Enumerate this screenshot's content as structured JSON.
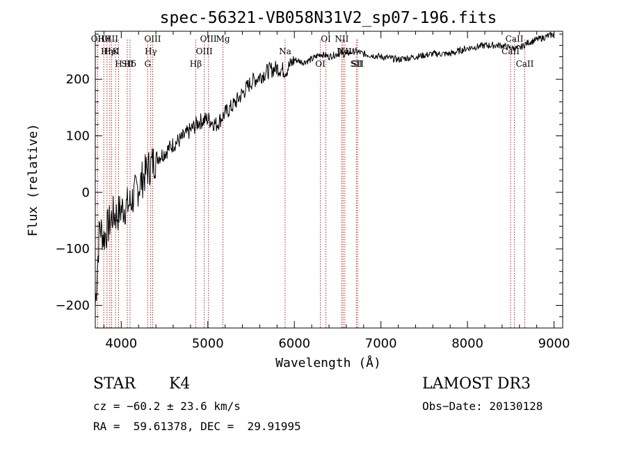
{
  "chart_data": {
    "type": "line",
    "title": "spec-56321-VB058N31V2_sp07-196.fits",
    "xlabel": "Wavelength (Å)",
    "ylabel": "Flux (relative)",
    "xlim": [
      3700,
      9100
    ],
    "ylim": [
      -240,
      285
    ],
    "xticks": [
      4000,
      5000,
      6000,
      7000,
      8000,
      9000
    ],
    "xtick_labels": [
      "4000",
      "5000",
      "6000",
      "7000",
      "8000",
      "9000"
    ],
    "yticks": [
      -200,
      -100,
      0,
      100,
      200
    ],
    "ytick_labels": [
      "−200",
      "−100",
      "0",
      "100",
      "200"
    ],
    "grid": false,
    "series": [
      {
        "name": "flux",
        "color": "#000000",
        "x": [
          3700,
          3750,
          3800,
          3850,
          3900,
          3950,
          4000,
          4100,
          4200,
          4300,
          4400,
          4500,
          4600,
          4700,
          4800,
          4900,
          5000,
          5100,
          5200,
          5300,
          5400,
          5500,
          5600,
          5700,
          5800,
          5900,
          6000,
          6100,
          6200,
          6300,
          6400,
          6500,
          6600,
          6700,
          6800,
          7000,
          7200,
          7400,
          7600,
          7800,
          8000,
          8200,
          8400,
          8500,
          8600,
          8700,
          8800,
          8900,
          9000
        ],
        "y": [
          -200,
          -60,
          -80,
          -60,
          -40,
          -40,
          -30,
          -20,
          10,
          40,
          60,
          70,
          85,
          95,
          110,
          125,
          130,
          120,
          140,
          155,
          175,
          195,
          205,
          215,
          220,
          215,
          235,
          230,
          235,
          245,
          240,
          245,
          245,
          250,
          245,
          240,
          235,
          240,
          245,
          245,
          255,
          260,
          260,
          255,
          255,
          265,
          270,
          275,
          280
        ]
      }
    ],
    "lines": [
      {
        "label": "Hθ",
        "x": 3798
      },
      {
        "label": "K",
        "x": 3934
      },
      {
        "label": "Hδ",
        "x": 4102
      },
      {
        "label": "OII",
        "x": 3727
      },
      {
        "label": "HeI",
        "x": 3889
      },
      {
        "label": "SII",
        "x": 4070
      },
      {
        "label": "OIII",
        "x": 3868
      },
      {
        "label": "Hη",
        "x": 3835
      },
      {
        "label": "H",
        "x": 3969
      },
      {
        "label": "OIII",
        "x": 4363
      },
      {
        "label": "Hγ",
        "x": 4341
      },
      {
        "label": "G",
        "x": 4305
      },
      {
        "label": "OIII",
        "x": 5007
      },
      {
        "label": "OIII",
        "x": 4959
      },
      {
        "label": "Hβ",
        "x": 4861
      },
      {
        "label": "Mg",
        "x": 5175
      },
      {
        "label": "Na",
        "x": 5893
      },
      {
        "label": "OI",
        "x": 6300
      },
      {
        "label": "OI",
        "x": 6364
      },
      {
        "label": "Hα",
        "x": 6563
      },
      {
        "label": "SII",
        "x": 6716
      },
      {
        "label": "NII",
        "x": 6548
      },
      {
        "label": "NII",
        "x": 6583
      },
      {
        "label": "SII",
        "x": 6731
      },
      {
        "label": "CaII",
        "x": 8542
      },
      {
        "label": "CaII",
        "x": 8498
      },
      {
        "label": "CaII",
        "x": 8662
      }
    ]
  },
  "footer": {
    "class_label": "STAR",
    "subclass": "K4",
    "survey": "LAMOST DR3",
    "cz": "cz = −60.2 ± 23.6 km/s",
    "obs_date": "Obs−Date: 20130128",
    "coords": "RA =  59.61378, DEC =  29.91995"
  }
}
